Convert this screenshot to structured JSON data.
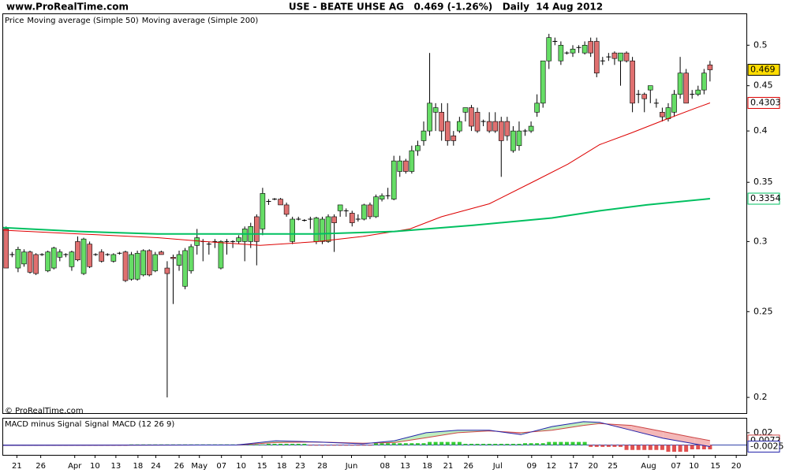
{
  "header": {
    "site": "www.ProRealTime.com",
    "title": "USE - BEATE UHSE AG   0.469 (-1.26%)   Daily  14 Aug 2012"
  },
  "watermark": "© ProRealTime.com",
  "chart_data": [
    {
      "type": "candlestick",
      "legend_label": "Price",
      "up_color": "#66dd66",
      "down_color": "#e07070",
      "last": 0.469,
      "last_color": "#ffdd00",
      "log_scale": true,
      "ylim": [
        0.192,
        0.542
      ],
      "yticks": [
        0.2,
        0.25,
        0.3,
        0.35,
        0.4,
        0.45,
        0.5
      ],
      "xlim": [
        -0.5,
        124.1
      ],
      "ohlc": [
        [
          0.31,
          0.312,
          0.28,
          0.28
        ],
        [
          0.29,
          0.292,
          0.288,
          0.29
        ],
        [
          0.28,
          0.296,
          0.277,
          0.294
        ],
        [
          0.283,
          0.294,
          0.281,
          0.292
        ],
        [
          0.292,
          0.293,
          0.276,
          0.277
        ],
        [
          0.29,
          0.291,
          0.275,
          0.276
        ],
        [
          0.29,
          0.291,
          0.289,
          0.29
        ],
        [
          0.278,
          0.293,
          0.277,
          0.292
        ],
        [
          0.28,
          0.296,
          0.279,
          0.295
        ],
        [
          0.288,
          0.294,
          0.285,
          0.292
        ],
        [
          0.29,
          0.291,
          0.288,
          0.29
        ],
        [
          0.281,
          0.293,
          0.278,
          0.292
        ],
        [
          0.3,
          0.304,
          0.285,
          0.286
        ],
        [
          0.276,
          0.303,
          0.275,
          0.302
        ],
        [
          0.298,
          0.3,
          0.28,
          0.281
        ],
        [
          0.29,
          0.291,
          0.289,
          0.29
        ],
        [
          0.292,
          0.294,
          0.284,
          0.285
        ],
        [
          0.29,
          0.291,
          0.289,
          0.29
        ],
        [
          0.285,
          0.291,
          0.284,
          0.29
        ],
        [
          0.291,
          0.292,
          0.29,
          0.291
        ],
        [
          0.292,
          0.293,
          0.27,
          0.271
        ],
        [
          0.272,
          0.292,
          0.271,
          0.29
        ],
        [
          0.272,
          0.293,
          0.271,
          0.291
        ],
        [
          0.275,
          0.294,
          0.274,
          0.293
        ],
        [
          0.293,
          0.294,
          0.274,
          0.275
        ],
        [
          0.278,
          0.292,
          0.277,
          0.29
        ],
        [
          0.292,
          0.293,
          0.29,
          0.29
        ],
        [
          0.28,
          0.285,
          0.2,
          0.276
        ],
        [
          0.288,
          0.29,
          0.255,
          0.287
        ],
        [
          0.282,
          0.293,
          0.278,
          0.29
        ],
        [
          0.267,
          0.295,
          0.265,
          0.293
        ],
        [
          0.278,
          0.298,
          0.276,
          0.296
        ],
        [
          0.297,
          0.31,
          0.29,
          0.303
        ],
        [
          0.3,
          0.302,
          0.285,
          0.3
        ],
        [
          0.298,
          0.3,
          0.29,
          0.298
        ],
        [
          0.3,
          0.302,
          0.295,
          0.3
        ],
        [
          0.28,
          0.301,
          0.279,
          0.3
        ],
        [
          0.3,
          0.302,
          0.29,
          0.3
        ],
        [
          0.3,
          0.301,
          0.295,
          0.3
        ],
        [
          0.3,
          0.305,
          0.298,
          0.303
        ],
        [
          0.3,
          0.312,
          0.285,
          0.31
        ],
        [
          0.3,
          0.315,
          0.295,
          0.312
        ],
        [
          0.32,
          0.322,
          0.282,
          0.3
        ],
        [
          0.31,
          0.345,
          0.305,
          0.34
        ],
        [
          0.333,
          0.335,
          0.33,
          0.333
        ],
        [
          0.335,
          0.336,
          0.334,
          0.335
        ],
        [
          0.335,
          0.336,
          0.33,
          0.33
        ],
        [
          0.33,
          0.332,
          0.32,
          0.322
        ],
        [
          0.3,
          0.32,
          0.298,
          0.318
        ],
        [
          0.318,
          0.32,
          0.317,
          0.318
        ],
        [
          0.317,
          0.318,
          0.316,
          0.317
        ],
        [
          0.318,
          0.32,
          0.31,
          0.318
        ],
        [
          0.3,
          0.32,
          0.298,
          0.319
        ],
        [
          0.3,
          0.32,
          0.298,
          0.318
        ],
        [
          0.3,
          0.322,
          0.299,
          0.32
        ],
        [
          0.32,
          0.322,
          0.292,
          0.315
        ],
        [
          0.325,
          0.33,
          0.32,
          0.33
        ],
        [
          0.325,
          0.327,
          0.32,
          0.325
        ],
        [
          0.323,
          0.325,
          0.312,
          0.315
        ],
        [
          0.318,
          0.322,
          0.316,
          0.318
        ],
        [
          0.318,
          0.331,
          0.317,
          0.33
        ],
        [
          0.33,
          0.332,
          0.318,
          0.32
        ],
        [
          0.32,
          0.339,
          0.319,
          0.337
        ],
        [
          0.335,
          0.34,
          0.333,
          0.338
        ],
        [
          0.338,
          0.345,
          0.335,
          0.338
        ],
        [
          0.335,
          0.375,
          0.334,
          0.37
        ],
        [
          0.36,
          0.375,
          0.355,
          0.37
        ],
        [
          0.37,
          0.372,
          0.358,
          0.36
        ],
        [
          0.36,
          0.385,
          0.358,
          0.38
        ],
        [
          0.38,
          0.39,
          0.375,
          0.385
        ],
        [
          0.39,
          0.41,
          0.385,
          0.4
        ],
        [
          0.4,
          0.49,
          0.395,
          0.43
        ],
        [
          0.42,
          0.43,
          0.4,
          0.425
        ],
        [
          0.42,
          0.43,
          0.39,
          0.4
        ],
        [
          0.41,
          0.43,
          0.385,
          0.39
        ],
        [
          0.395,
          0.4,
          0.385,
          0.39
        ],
        [
          0.4,
          0.415,
          0.398,
          0.41
        ],
        [
          0.42,
          0.425,
          0.41,
          0.425
        ],
        [
          0.425,
          0.428,
          0.4,
          0.405
        ],
        [
          0.42,
          0.425,
          0.398,
          0.4
        ],
        [
          0.41,
          0.412,
          0.405,
          0.41
        ],
        [
          0.41,
          0.42,
          0.398,
          0.4
        ],
        [
          0.41,
          0.42,
          0.398,
          0.4
        ],
        [
          0.41,
          0.415,
          0.355,
          0.39
        ],
        [
          0.41,
          0.415,
          0.39,
          0.395
        ],
        [
          0.38,
          0.405,
          0.378,
          0.4
        ],
        [
          0.385,
          0.41,
          0.38,
          0.4
        ],
        [
          0.4,
          0.402,
          0.395,
          0.4
        ],
        [
          0.4,
          0.41,
          0.398,
          0.405
        ],
        [
          0.42,
          0.44,
          0.415,
          0.43
        ],
        [
          0.43,
          0.48,
          0.425,
          0.48
        ],
        [
          0.48,
          0.515,
          0.47,
          0.51
        ],
        [
          0.505,
          0.51,
          0.5,
          0.505
        ],
        [
          0.48,
          0.505,
          0.475,
          0.5
        ],
        [
          0.49,
          0.492,
          0.488,
          0.49
        ],
        [
          0.49,
          0.5,
          0.485,
          0.495
        ],
        [
          0.497,
          0.5,
          0.49,
          0.497
        ],
        [
          0.49,
          0.505,
          0.488,
          0.5
        ],
        [
          0.505,
          0.51,
          0.485,
          0.49
        ],
        [
          0.505,
          0.51,
          0.46,
          0.465
        ],
        [
          0.48,
          0.485,
          0.475,
          0.48
        ],
        [
          0.485,
          0.49,
          0.48,
          0.485
        ],
        [
          0.49,
          0.492,
          0.475,
          0.483
        ],
        [
          0.48,
          0.49,
          0.45,
          0.49
        ],
        [
          0.49,
          0.492,
          0.478,
          0.48
        ],
        [
          0.48,
          0.485,
          0.42,
          0.43
        ],
        [
          0.44,
          0.445,
          0.43,
          0.44
        ],
        [
          0.44,
          0.442,
          0.42,
          0.435
        ],
        [
          0.445,
          0.45,
          0.43,
          0.45
        ],
        [
          0.43,
          0.435,
          0.425,
          0.43
        ],
        [
          0.42,
          0.425,
          0.41,
          0.415
        ],
        [
          0.413,
          0.43,
          0.41,
          0.425
        ],
        [
          0.42,
          0.445,
          0.415,
          0.44
        ],
        [
          0.44,
          0.485,
          0.435,
          0.465
        ],
        [
          0.465,
          0.47,
          0.43,
          0.43
        ],
        [
          0.44,
          0.445,
          0.435,
          0.44
        ],
        [
          0.44,
          0.45,
          0.438,
          0.445
        ],
        [
          0.445,
          0.47,
          0.44,
          0.465
        ],
        [
          0.475,
          0.48,
          0.455,
          0.469
        ]
      ],
      "series": [
        {
          "name": "Moving average (Simple 50)",
          "color": "#dd0000",
          "tag": 0.4303,
          "x": [
            -0.5,
            12.2,
            25.4,
            33.3,
            42.6,
            52.3,
            59.8,
            67.7,
            73.0,
            81.0,
            88.9,
            94.2,
            99.5,
            104.8,
            110.1,
            115.4,
            118
          ],
          "values": [
            0.309,
            0.306,
            0.303,
            0.3,
            0.297,
            0.3,
            0.304,
            0.31,
            0.32,
            0.331,
            0.352,
            0.367,
            0.386,
            0.398,
            0.411,
            0.424,
            0.4303
          ]
        },
        {
          "name": "Moving average (Simple 200)",
          "color": "#00c060",
          "tag": 0.3354,
          "x": [
            -0.5,
            12.2,
            25.4,
            38.6,
            51.9,
            65.1,
            78.3,
            91.5,
            99.5,
            107.4,
            118
          ],
          "values": [
            0.311,
            0.308,
            0.306,
            0.306,
            0.306,
            0.308,
            0.313,
            0.319,
            0.325,
            0.33,
            0.3354
          ]
        }
      ]
    },
    {
      "type": "macd",
      "ylim": [
        -0.016,
        0.043
      ],
      "yticks": [
        0.02
      ],
      "xlim": [
        -0.5,
        124.1
      ],
      "histogram": {
        "name": "MACD minus Signal",
        "up_color": "#33cc33",
        "down_color": "#e05050",
        "values": [
          -0.001,
          -0.001,
          -0.001,
          -0.001,
          -0.001,
          -0.001,
          -0.001,
          -0.001,
          -0.001,
          -0.001,
          -0.001,
          -0.001,
          -0.001,
          -0.001,
          -0.001,
          -0.001,
          -0.001,
          -0.001,
          -0.001,
          -0.001,
          -0.001,
          0.001,
          0.001,
          0.001,
          0.001,
          0.001,
          0.001,
          0.001,
          0.001,
          0.001,
          0.001,
          0.001,
          0.001,
          0.001,
          0.001,
          0.001,
          0.001,
          0.001,
          0.001,
          0.001,
          0.001,
          0.001,
          0.001,
          0.001,
          0.002,
          0.002,
          0.002,
          0.002,
          0.002,
          0.002,
          0.002,
          -0.001,
          -0.001,
          -0.001,
          -0.001,
          -0.001,
          -0.001,
          -0.001,
          -0.001,
          -0.001,
          -0.001,
          -0.001,
          0.003,
          0.003,
          0.003,
          0.003,
          0.003,
          0.003,
          0.003,
          0.003,
          0.003,
          0.005,
          0.005,
          0.005,
          0.005,
          0.005,
          0.005,
          0.002,
          0.002,
          0.002,
          0.002,
          0.002,
          0.002,
          0.002,
          0.002,
          0.002,
          0.002,
          0.003,
          0.003,
          0.003,
          0.003,
          0.005,
          0.005,
          0.005,
          0.005,
          0.005,
          0.005,
          0.005,
          -0.003,
          -0.003,
          -0.003,
          -0.003,
          -0.003,
          -0.003,
          -0.008,
          -0.008,
          -0.008,
          -0.008,
          -0.008,
          -0.008,
          -0.008,
          -0.011,
          -0.011,
          -0.011,
          -0.011,
          -0.007,
          -0.007,
          -0.007,
          -0.007
        ]
      },
      "series": [
        {
          "name": "Signal",
          "color": "#cc4444",
          "tag": 0.0072,
          "x": [
            -0.5,
            38.6,
            45.2,
            51.9,
            59.8,
            65.1,
            70.4,
            75.7,
            81.0,
            86.3,
            91.5,
            96.8,
            99.5,
            104.8,
            110.1,
            115.4,
            118
          ],
          "values": [
            -0.0005,
            0,
            0.004,
            0.005,
            0.003,
            0.004,
            0.012,
            0.02,
            0.023,
            0.02,
            0.024,
            0.032,
            0.035,
            0.032,
            0.022,
            0.012,
            0.0072
          ]
        },
        {
          "name": "MACD (12 26 9)",
          "color": "#2222aa",
          "tag": -0.0025,
          "x": [
            -0.5,
            38.6,
            45.2,
            51.9,
            59.8,
            65.1,
            70.4,
            75.7,
            81.0,
            86.3,
            91.5,
            96.8,
            99.5,
            104.8,
            110.1,
            115.4,
            118
          ],
          "values": [
            -0.0005,
            0,
            0.007,
            0.005,
            0.002,
            0.007,
            0.02,
            0.024,
            0.024,
            0.017,
            0.03,
            0.038,
            0.037,
            0.024,
            0.011,
            0.002,
            -0.0025
          ]
        }
      ],
      "xticks": [
        {
          "value": 1.8,
          "label": "21"
        },
        {
          "value": 5.8,
          "label": "26"
        },
        {
          "value": 11.5,
          "label": "Apr"
        },
        {
          "value": 14.9,
          "label": "10"
        },
        {
          "value": 18.4,
          "label": "13"
        },
        {
          "value": 22.1,
          "label": "18"
        },
        {
          "value": 25.1,
          "label": "24"
        },
        {
          "value": 29.0,
          "label": "26"
        },
        {
          "value": 32.4,
          "label": "May"
        },
        {
          "value": 36.1,
          "label": "07"
        },
        {
          "value": 39.4,
          "label": "10"
        },
        {
          "value": 42.9,
          "label": "15"
        },
        {
          "value": 46.2,
          "label": "18"
        },
        {
          "value": 49.3,
          "label": "23"
        },
        {
          "value": 53.0,
          "label": "28"
        },
        {
          "value": 57.9,
          "label": "Jun"
        },
        {
          "value": 63.5,
          "label": "08"
        },
        {
          "value": 66.9,
          "label": "13"
        },
        {
          "value": 70.6,
          "label": "18"
        },
        {
          "value": 74.1,
          "label": "21"
        },
        {
          "value": 77.5,
          "label": "26"
        },
        {
          "value": 82.4,
          "label": "Jul"
        },
        {
          "value": 88.1,
          "label": "09"
        },
        {
          "value": 91.4,
          "label": "12"
        },
        {
          "value": 95.1,
          "label": "17"
        },
        {
          "value": 98.4,
          "label": "20"
        },
        {
          "value": 101.7,
          "label": "25"
        },
        {
          "value": 107.7,
          "label": "Aug"
        },
        {
          "value": 112.3,
          "label": "07"
        },
        {
          "value": 115.3,
          "label": "10"
        },
        {
          "value": 118.9,
          "label": "15"
        },
        {
          "value": 122.4,
          "label": "20"
        }
      ]
    }
  ]
}
